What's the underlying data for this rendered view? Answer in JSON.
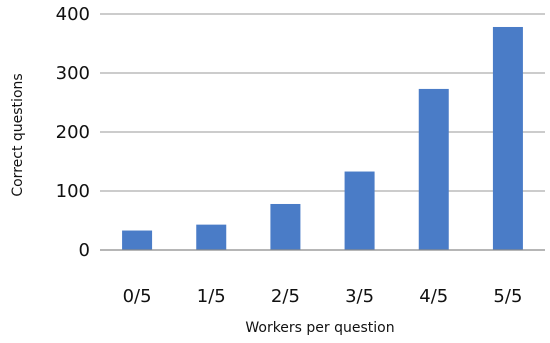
{
  "chart_data": {
    "type": "bar",
    "title": "",
    "xlabel": "Workers per question",
    "ylabel": "Correct questions",
    "categories": [
      "0/5",
      "1/5",
      "2/5",
      "3/5",
      "4/5",
      "5/5"
    ],
    "values": [
      33,
      43,
      78,
      133,
      273,
      378
    ],
    "ylim": [
      0,
      400
    ],
    "yticks": [
      0,
      100,
      200,
      300,
      400
    ],
    "grid": true,
    "legend": "none",
    "bar_color": "#4a7cc7"
  }
}
